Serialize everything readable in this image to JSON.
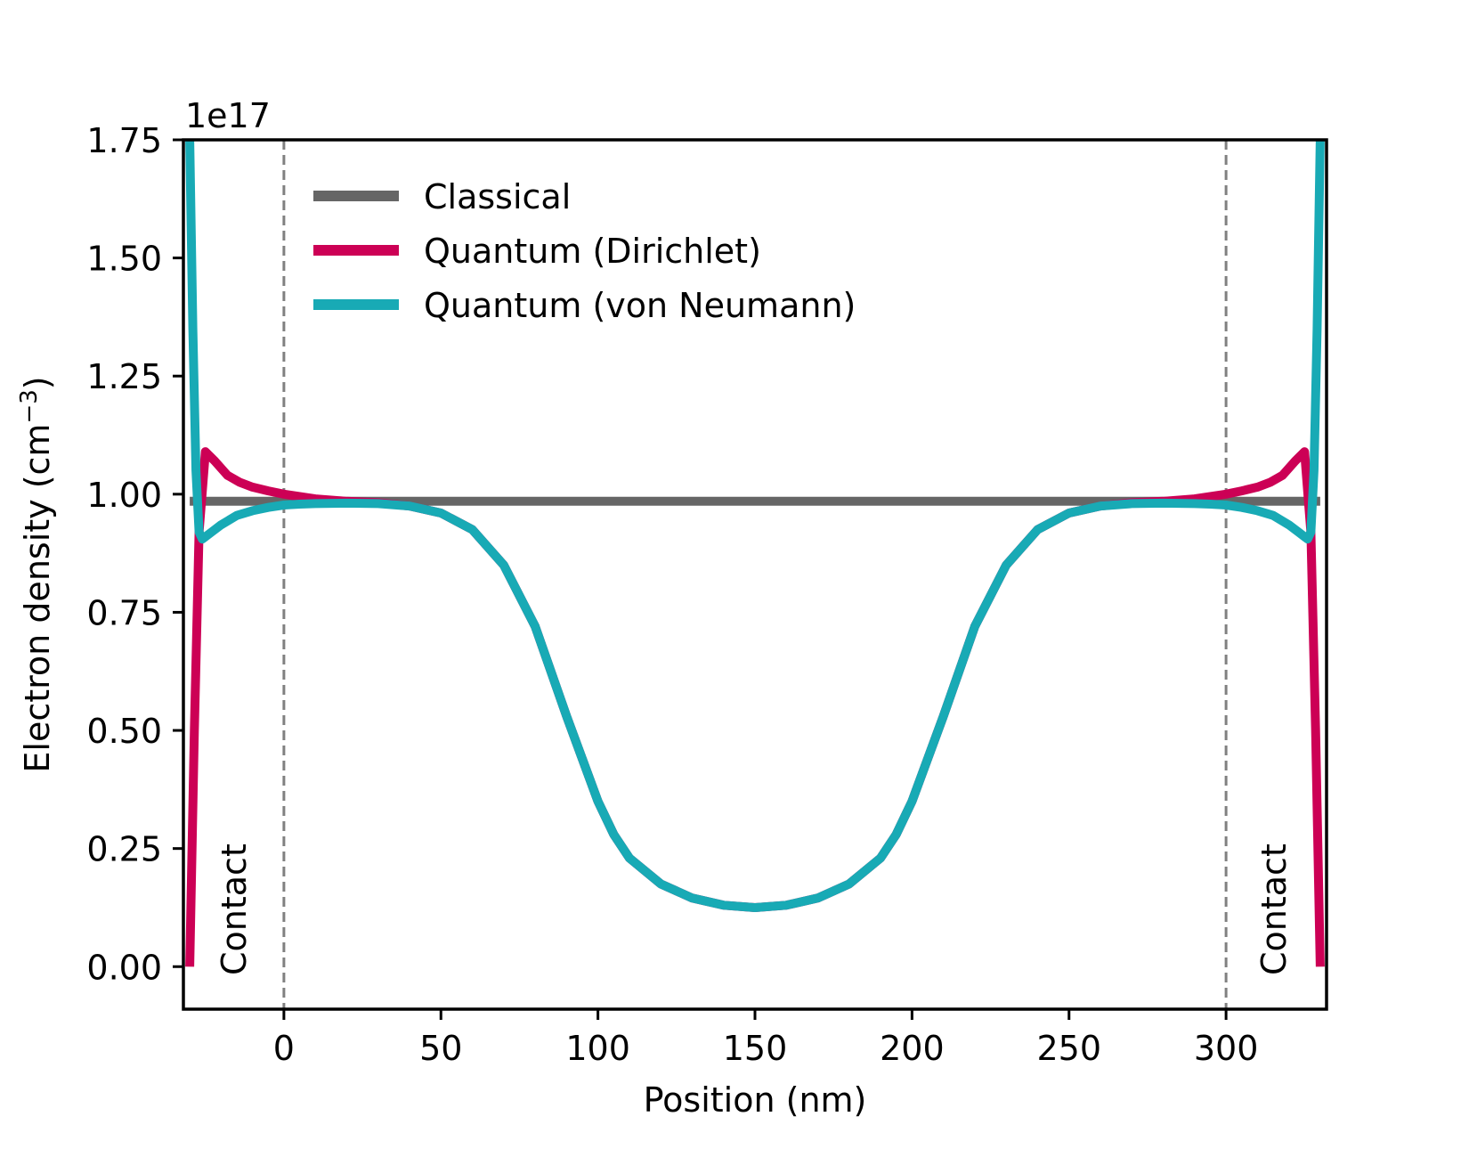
{
  "chart_data": {
    "type": "line",
    "title": "",
    "xlabel": "Position (nm)",
    "ylabel_text": "Electron density (cm",
    "ylabel_sup": "−3",
    "ylabel_close": ")",
    "y_offset_label": "1e17",
    "xlim": [
      -32,
      332
    ],
    "ylim": [
      -0.09,
      1.75
    ],
    "x_ticks": [
      0,
      50,
      100,
      150,
      200,
      250,
      300
    ],
    "x_tick_labels": [
      "0",
      "50",
      "100",
      "150",
      "200",
      "250",
      "300"
    ],
    "y_ticks": [
      0.0,
      0.25,
      0.5,
      0.75,
      1.0,
      1.25,
      1.5,
      1.75
    ],
    "y_tick_labels": [
      "0.00",
      "0.25",
      "0.50",
      "0.75",
      "1.00",
      "1.25",
      "1.50",
      "1.75"
    ],
    "grid": false,
    "legend_position": "top-left",
    "contact_boundaries": [
      0,
      300
    ],
    "contact_labels": [
      "Contact",
      "Contact"
    ],
    "series": [
      {
        "name": "Classical",
        "color": "#666666",
        "x": [
          -30,
          -20,
          -10,
          0,
          10,
          25,
          40,
          55,
          65,
          75,
          85,
          95,
          100,
          105,
          115,
          125,
          140,
          150,
          160,
          175,
          185,
          195,
          200,
          205,
          215,
          225,
          235,
          245,
          260,
          275,
          290,
          300,
          310,
          320,
          330
        ],
        "y": [
          0.985,
          0.985,
          0.985,
          0.985,
          0.985,
          0.985,
          0.985,
          0.985,
          0.985,
          0.985,
          0.985,
          0.985,
          0.985,
          0.985,
          0.985,
          0.985,
          0.985,
          0.985,
          0.985,
          0.985,
          0.985,
          0.985,
          0.985,
          0.985,
          0.985,
          0.985,
          0.985,
          0.985,
          0.985,
          0.985,
          0.985,
          0.985,
          0.985,
          0.985,
          0.985
        ]
      },
      {
        "name": "Quantum (Dirichlet)",
        "color": "#cc0055",
        "x": [
          -30,
          -28.5,
          -27,
          -25,
          -22,
          -18,
          -14,
          -10,
          -5,
          0,
          5,
          10,
          20,
          30,
          40,
          50,
          60,
          70,
          80,
          90,
          95,
          100,
          105,
          110,
          120,
          130,
          140,
          150,
          160,
          170,
          180,
          190,
          195,
          200,
          205,
          210,
          220,
          230,
          240,
          250,
          260,
          270,
          280,
          290,
          300,
          305,
          310,
          314,
          318,
          322,
          325,
          327,
          328.5,
          330
        ],
        "y": [
          0.0,
          0.5,
          0.92,
          1.09,
          1.07,
          1.04,
          1.025,
          1.015,
          1.007,
          1.0,
          0.995,
          0.99,
          0.985,
          0.982,
          0.975,
          0.96,
          0.925,
          0.85,
          0.72,
          0.53,
          0.44,
          0.35,
          0.28,
          0.23,
          0.175,
          0.145,
          0.13,
          0.125,
          0.13,
          0.145,
          0.175,
          0.23,
          0.28,
          0.35,
          0.44,
          0.53,
          0.72,
          0.85,
          0.925,
          0.96,
          0.975,
          0.982,
          0.985,
          0.99,
          1.0,
          1.007,
          1.015,
          1.025,
          1.04,
          1.07,
          1.09,
          0.92,
          0.5,
          0.0
        ]
      },
      {
        "name": "Quantum (von Neumann)",
        "color": "#18aab5",
        "x": [
          -30,
          -29,
          -28,
          -27,
          -26,
          -25,
          -23,
          -20,
          -15,
          -10,
          -5,
          0,
          5,
          10,
          20,
          30,
          40,
          50,
          60,
          70,
          80,
          90,
          95,
          100,
          105,
          110,
          120,
          130,
          140,
          150,
          160,
          170,
          180,
          190,
          195,
          200,
          205,
          210,
          220,
          230,
          240,
          250,
          260,
          270,
          280,
          290,
          295,
          300,
          305,
          310,
          315,
          320,
          323,
          325,
          326,
          327,
          328,
          329,
          330
        ],
        "y": [
          1.75,
          1.35,
          1.05,
          0.92,
          0.905,
          0.91,
          0.92,
          0.935,
          0.955,
          0.965,
          0.972,
          0.977,
          0.979,
          0.98,
          0.981,
          0.98,
          0.975,
          0.96,
          0.925,
          0.85,
          0.72,
          0.53,
          0.44,
          0.35,
          0.28,
          0.23,
          0.175,
          0.145,
          0.13,
          0.125,
          0.13,
          0.145,
          0.175,
          0.23,
          0.28,
          0.35,
          0.44,
          0.53,
          0.72,
          0.85,
          0.925,
          0.96,
          0.975,
          0.98,
          0.981,
          0.98,
          0.979,
          0.977,
          0.972,
          0.965,
          0.955,
          0.935,
          0.92,
          0.91,
          0.905,
          0.92,
          1.05,
          1.35,
          1.75
        ]
      }
    ]
  }
}
